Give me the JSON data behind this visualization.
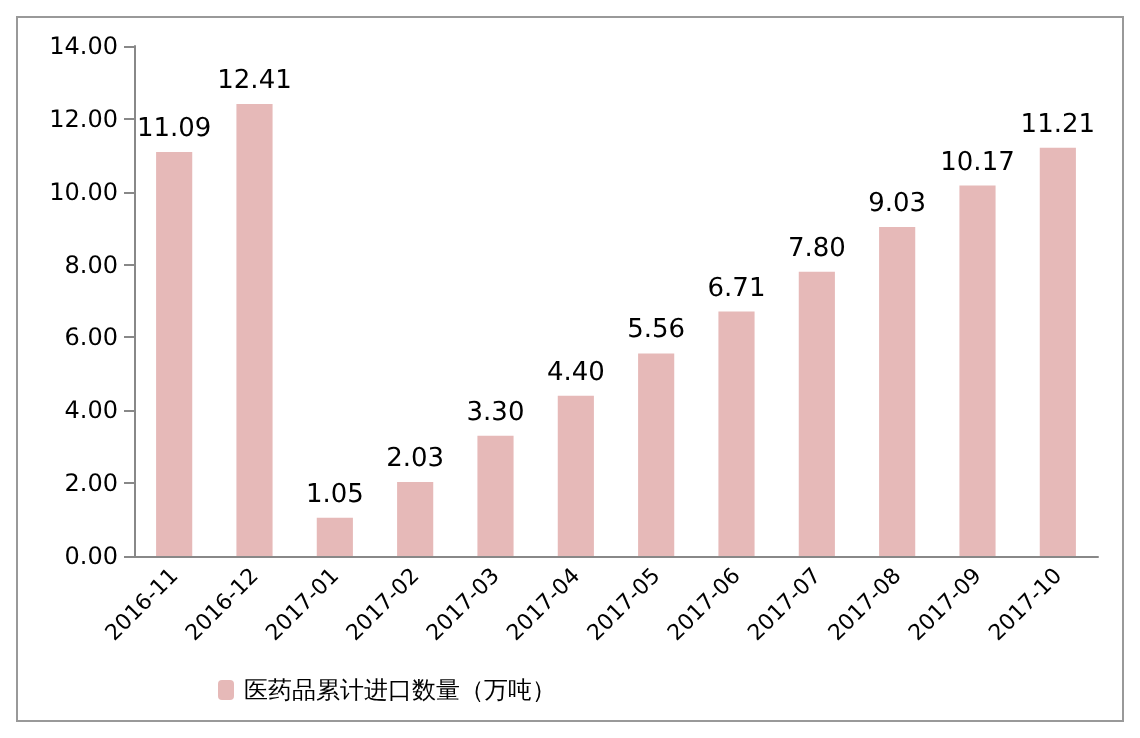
{
  "chart_data": {
    "type": "bar",
    "categories": [
      "2016-11",
      "2016-12",
      "2017-01",
      "2017-02",
      "2017-03",
      "2017-04",
      "2017-05",
      "2017-06",
      "2017-07",
      "2017-08",
      "2017-09",
      "2017-10"
    ],
    "series": [
      {
        "name": "医药品累计进口数量（万吨）",
        "color": "#e6b9b8",
        "values": [
          11.09,
          12.41,
          1.05,
          2.03,
          3.3,
          4.4,
          5.56,
          6.71,
          7.8,
          9.03,
          10.17,
          11.21
        ],
        "value_labels": [
          "11.09",
          "12.41",
          "1.05",
          "2.03",
          "3.30",
          "4.40",
          "5.56",
          "6.71",
          "7.80",
          "9.03",
          "10.17",
          "11.21"
        ]
      }
    ],
    "ylim": [
      0,
      14
    ],
    "yticks": [
      {
        "value": 0,
        "label": "0.00"
      },
      {
        "value": 2,
        "label": "2.00"
      },
      {
        "value": 4,
        "label": "4.00"
      },
      {
        "value": 6,
        "label": "6.00"
      },
      {
        "value": 8,
        "label": "8.00"
      },
      {
        "value": 10,
        "label": "10.00"
      },
      {
        "value": 12,
        "label": "12.00"
      },
      {
        "value": 14,
        "label": "14.00"
      }
    ],
    "grid": false,
    "legend": "bottom"
  }
}
